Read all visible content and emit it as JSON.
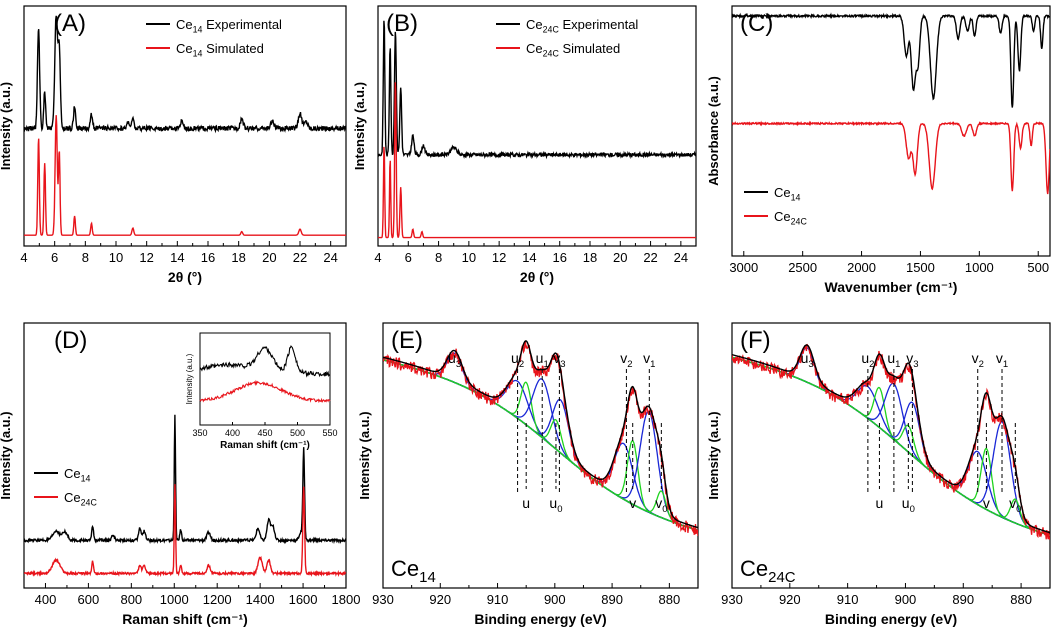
{
  "colors": {
    "black": "#000000",
    "red": "#e8141b",
    "green": "#1fd31f",
    "blue": "#1a27d6",
    "gray": "#8c8c8c",
    "darkred": "#8b1a1a"
  },
  "chart_data": [
    {
      "id": "A",
      "panel_label": "(A)",
      "type": "line",
      "title": "",
      "xlabel": "2θ (°)",
      "ylabel": "Intensity (a.u.)",
      "xlim": [
        4,
        25
      ],
      "ylim": [
        0,
        10
      ],
      "xticks": [
        4,
        6,
        8,
        10,
        12,
        14,
        16,
        18,
        20,
        22,
        24
      ],
      "legend": {
        "position": "top-right",
        "entries": [
          {
            "prefix": "Ce",
            "sub": "14",
            "suffix": " Experimental",
            "color": "#000000"
          },
          {
            "prefix": "Ce",
            "sub": "14",
            "suffix": " Simulated",
            "color": "#e8141b"
          }
        ]
      },
      "series": [
        {
          "name": "Ce14 Experimental",
          "color": "#000000",
          "baseline": 4.9,
          "noise": 0.1,
          "peaks": [
            [
              4.95,
              4.2,
              0.07
            ],
            [
              5.35,
              1.5,
              0.06
            ],
            [
              6.1,
              4.7,
              0.09
            ],
            [
              6.3,
              3.2,
              0.07
            ],
            [
              7.3,
              0.9,
              0.07
            ],
            [
              8.4,
              0.6,
              0.07
            ],
            [
              10.8,
              0.3,
              0.08
            ],
            [
              11.1,
              0.4,
              0.07
            ],
            [
              14.3,
              0.3,
              0.1
            ],
            [
              18.2,
              0.4,
              0.1
            ],
            [
              20.2,
              0.3,
              0.1
            ],
            [
              22.0,
              0.6,
              0.12
            ],
            [
              22.4,
              0.3,
              0.1
            ]
          ]
        },
        {
          "name": "Ce14 Simulated",
          "color": "#e8141b",
          "baseline": 0.45,
          "noise": 0.0,
          "peaks": [
            [
              4.95,
              4.1,
              0.05
            ],
            [
              5.35,
              3.0,
              0.05
            ],
            [
              6.1,
              5.0,
              0.07
            ],
            [
              6.3,
              3.5,
              0.05
            ],
            [
              7.3,
              0.8,
              0.05
            ],
            [
              8.4,
              0.5,
              0.05
            ],
            [
              11.1,
              0.3,
              0.06
            ],
            [
              18.2,
              0.15,
              0.06
            ],
            [
              22.0,
              0.25,
              0.08
            ]
          ]
        }
      ]
    },
    {
      "id": "B",
      "panel_label": "(B)",
      "type": "line",
      "title": "",
      "xlabel": "2θ (°)",
      "ylabel": "Intensity (a.u.)",
      "xlim": [
        4,
        25
      ],
      "ylim": [
        0,
        10
      ],
      "xticks": [
        4,
        6,
        8,
        10,
        12,
        14,
        16,
        18,
        20,
        22,
        24
      ],
      "legend": {
        "position": "top-right",
        "entries": [
          {
            "prefix": "Ce",
            "sub": "24C",
            "suffix": " Experimental",
            "color": "#000000"
          },
          {
            "prefix": "Ce",
            "sub": "24C",
            "suffix": " Simulated",
            "color": "#e8141b"
          }
        ]
      },
      "series": [
        {
          "name": "Ce24C Experimental",
          "color": "#000000",
          "baseline": 3.8,
          "noise": 0.08,
          "peaks": [
            [
              4.4,
              5.7,
              0.05
            ],
            [
              4.8,
              4.6,
              0.05
            ],
            [
              5.15,
              5.2,
              0.06
            ],
            [
              5.5,
              2.8,
              0.06
            ],
            [
              6.3,
              0.8,
              0.08
            ],
            [
              7.0,
              0.4,
              0.1
            ],
            [
              9.0,
              0.3,
              0.2
            ]
          ]
        },
        {
          "name": "Ce24C Simulated",
          "color": "#e8141b",
          "baseline": 0.35,
          "noise": 0.0,
          "peaks": [
            [
              4.4,
              3.9,
              0.04
            ],
            [
              4.8,
              3.3,
              0.04
            ],
            [
              5.15,
              6.6,
              0.05
            ],
            [
              5.5,
              2.1,
              0.05
            ],
            [
              6.3,
              0.35,
              0.05
            ],
            [
              6.9,
              0.25,
              0.05
            ]
          ]
        }
      ]
    },
    {
      "id": "C",
      "panel_label": "(C)",
      "type": "line",
      "title": "",
      "xlabel": "Wavenumber (cm⁻¹)",
      "ylabel": "Absorbance (a.u.)",
      "xlim": [
        3100,
        400
      ],
      "ylim": [
        0,
        10
      ],
      "xticks": [
        3000,
        2500,
        2000,
        1500,
        1000,
        500
      ],
      "legend": {
        "position": "bottom-left",
        "entries": [
          {
            "prefix": "Ce",
            "sub": "14",
            "suffix": "",
            "color": "#000000"
          },
          {
            "prefix": "Ce",
            "sub": "24C",
            "suffix": "",
            "color": "#e8141b"
          }
        ]
      },
      "series": [
        {
          "name": "Ce14",
          "color": "#000000",
          "baseline": 9.6,
          "noise": 0.04,
          "peaks": [
            [
              1620,
              -1.6,
              18
            ],
            [
              1560,
              -2.9,
              18
            ],
            [
              1520,
              -1.8,
              15
            ],
            [
              1390,
              -3.3,
              25
            ],
            [
              1180,
              -0.9,
              15
            ],
            [
              1100,
              -0.6,
              15
            ],
            [
              1040,
              -0.8,
              12
            ],
            [
              820,
              -0.7,
              12
            ],
            [
              720,
              -3.7,
              12
            ],
            [
              660,
              -2.2,
              12
            ],
            [
              540,
              -0.6,
              10
            ],
            [
              470,
              -1.3,
              10
            ]
          ]
        },
        {
          "name": "Ce24C",
          "color": "#e8141b",
          "baseline": 5.3,
          "noise": 0.03,
          "peaks": [
            [
              1600,
              -1.4,
              20
            ],
            [
              1545,
              -2.0,
              18
            ],
            [
              1400,
              -2.6,
              25
            ],
            [
              1130,
              -0.5,
              20
            ],
            [
              1040,
              -0.5,
              15
            ],
            [
              720,
              -2.7,
              12
            ],
            [
              650,
              -1.0,
              12
            ],
            [
              560,
              -0.9,
              10
            ],
            [
              420,
              -2.8,
              14
            ]
          ]
        }
      ]
    },
    {
      "id": "D",
      "panel_label": "(D)",
      "type": "line",
      "title": "",
      "xlabel": "Raman shift (cm⁻¹)",
      "ylabel": "Intensity (a.u.)",
      "xlim": [
        300,
        1800
      ],
      "ylim": [
        0,
        10
      ],
      "xticks": [
        400,
        600,
        800,
        1000,
        1200,
        1400,
        1600,
        1800
      ],
      "legend": {
        "position": "middle-left",
        "entries": [
          {
            "prefix": "Ce",
            "sub": "14",
            "suffix": "",
            "color": "#000000"
          },
          {
            "prefix": "Ce",
            "sub": "24C",
            "suffix": "",
            "color": "#e8141b"
          }
        ]
      },
      "series": [
        {
          "name": "Ce14",
          "color": "#000000",
          "baseline": 1.8,
          "noise": 0.05,
          "peaks": [
            [
              450,
              0.35,
              15
            ],
            [
              490,
              0.3,
              12
            ],
            [
              620,
              0.55,
              4
            ],
            [
              715,
              0.2,
              6
            ],
            [
              840,
              0.45,
              6
            ],
            [
              860,
              0.35,
              6
            ],
            [
              1003,
              4.7,
              3
            ],
            [
              1030,
              0.4,
              4
            ],
            [
              1160,
              0.3,
              8
            ],
            [
              1390,
              0.45,
              8
            ],
            [
              1440,
              0.75,
              8
            ],
            [
              1460,
              0.5,
              8
            ],
            [
              1590,
              0.3,
              8
            ],
            [
              1603,
              3.4,
              4
            ]
          ]
        },
        {
          "name": "Ce24C",
          "color": "#e8141b",
          "baseline": 0.55,
          "noise": 0.04,
          "peaks": [
            [
              450,
              0.5,
              18
            ],
            [
              620,
              0.45,
              4
            ],
            [
              840,
              0.3,
              6
            ],
            [
              860,
              0.3,
              6
            ],
            [
              1003,
              3.4,
              3
            ],
            [
              1030,
              0.3,
              4
            ],
            [
              1160,
              0.3,
              8
            ],
            [
              1400,
              0.6,
              10
            ],
            [
              1440,
              0.5,
              8
            ],
            [
              1603,
              3.3,
              4
            ]
          ]
        }
      ],
      "inset": {
        "xlabel": "Raman shift (cm⁻¹)",
        "ylabel": "Intensity (a.u.)",
        "xlim": [
          350,
          550
        ],
        "xticks": [
          350,
          400,
          450,
          500,
          550
        ],
        "series": [
          {
            "color": "#000000",
            "baseline": 5.5,
            "noise": 0.25,
            "slope": 0.6,
            "peaks": [
              [
                450,
                2.5,
                12
              ],
              [
                491,
                2.8,
                6
              ],
              [
                400,
                0.6,
                25
              ]
            ]
          },
          {
            "color": "#e8141b",
            "baseline": 2.6,
            "noise": 0.15,
            "slope": 0.0,
            "peaks": [
              [
                440,
                2.0,
                35
              ]
            ]
          }
        ]
      }
    },
    {
      "id": "E",
      "panel_label": "(E)",
      "type": "line",
      "title": "",
      "xlabel": "Binding energy (eV)",
      "ylabel": "Intensity (a.u.)",
      "xlim": [
        930,
        875
      ],
      "ylim": [
        0,
        10
      ],
      "xticks": [
        930,
        920,
        910,
        900,
        890,
        880
      ],
      "sample_label": {
        "prefix": "Ce",
        "sub": "14"
      },
      "top_markers": [
        {
          "base": "u",
          "sub": "3",
          "x": 917.5,
          "dashed": false
        },
        {
          "base": "u",
          "sub": "2",
          "x": 906.5,
          "dashed": true
        },
        {
          "base": "u",
          "sub": "1",
          "x": 902.2,
          "dashed": true
        },
        {
          "base": "v",
          "sub": "3",
          "x": 899.2,
          "dashed": true
        },
        {
          "base": "v",
          "sub": "2",
          "x": 887.5,
          "dashed": true
        },
        {
          "base": "v",
          "sub": "1",
          "x": 883.5,
          "dashed": true
        }
      ],
      "bottom_markers": [
        {
          "base": "u",
          "sub": "",
          "x": 905.0
        },
        {
          "base": "u",
          "sub": "0",
          "x": 899.8
        },
        {
          "base": "v",
          "sub": "",
          "x": 886.4
        },
        {
          "base": "v",
          "sub": "0",
          "x": 881.4
        }
      ],
      "background": {
        "start": 8.7,
        "end": 2.0
      },
      "components": [
        {
          "color": "#1a27d6",
          "x": 917.5,
          "h": 1.1,
          "w": 1.3
        },
        {
          "color": "#1a27d6",
          "x": 906.5,
          "h": 1.4,
          "w": 1.8
        },
        {
          "color": "#1fd31f",
          "x": 905.0,
          "h": 1.6,
          "w": 0.9
        },
        {
          "color": "#1a27d6",
          "x": 902.2,
          "h": 2.2,
          "w": 1.6
        },
        {
          "color": "#1fd31f",
          "x": 899.8,
          "h": 1.1,
          "w": 0.9
        },
        {
          "color": "#1a27d6",
          "x": 899.0,
          "h": 2.0,
          "w": 1.4
        },
        {
          "color": "#1a27d6",
          "x": 888.0,
          "h": 2.1,
          "w": 1.6
        },
        {
          "color": "#1fd31f",
          "x": 886.4,
          "h": 2.4,
          "w": 0.9
        },
        {
          "color": "#1a27d6",
          "x": 883.6,
          "h": 3.8,
          "w": 1.5
        },
        {
          "color": "#1fd31f",
          "x": 881.4,
          "h": 1.0,
          "w": 0.8
        }
      ]
    },
    {
      "id": "F",
      "panel_label": "(F)",
      "type": "line",
      "title": "",
      "xlabel": "Binding energy (eV)",
      "ylabel": "Intensity (a.u.)",
      "xlim": [
        930,
        875
      ],
      "ylim": [
        0,
        10
      ],
      "xticks": [
        930,
        920,
        910,
        900,
        890,
        880
      ],
      "sample_label": {
        "prefix": "Ce",
        "sub": "24C"
      },
      "top_markers": [
        {
          "base": "u",
          "sub": "3",
          "x": 917.0,
          "dashed": false
        },
        {
          "base": "u",
          "sub": "2",
          "x": 906.5,
          "dashed": true
        },
        {
          "base": "u",
          "sub": "1",
          "x": 902.0,
          "dashed": true
        },
        {
          "base": "v",
          "sub": "3",
          "x": 898.8,
          "dashed": true
        },
        {
          "base": "v",
          "sub": "2",
          "x": 887.5,
          "dashed": true
        },
        {
          "base": "v",
          "sub": "1",
          "x": 883.3,
          "dashed": true
        }
      ],
      "bottom_markers": [
        {
          "base": "u",
          "sub": "",
          "x": 904.5
        },
        {
          "base": "u",
          "sub": "0",
          "x": 899.5
        },
        {
          "base": "v",
          "sub": "",
          "x": 886.0
        },
        {
          "base": "v",
          "sub": "0",
          "x": 881.0
        }
      ],
      "background": {
        "start": 8.8,
        "end": 1.8
      },
      "components": [
        {
          "color": "#1a27d6",
          "x": 917.0,
          "h": 1.3,
          "w": 1.2
        },
        {
          "color": "#1a27d6",
          "x": 906.5,
          "h": 1.2,
          "w": 1.8
        },
        {
          "color": "#1fd31f",
          "x": 904.5,
          "h": 1.5,
          "w": 0.9
        },
        {
          "color": "#1a27d6",
          "x": 902.0,
          "h": 2.1,
          "w": 1.5
        },
        {
          "color": "#1fd31f",
          "x": 899.5,
          "h": 1.0,
          "w": 0.9
        },
        {
          "color": "#1a27d6",
          "x": 898.8,
          "h": 2.0,
          "w": 1.3
        },
        {
          "color": "#1a27d6",
          "x": 887.5,
          "h": 2.0,
          "w": 1.6
        },
        {
          "color": "#1fd31f",
          "x": 886.0,
          "h": 2.3,
          "w": 0.9
        },
        {
          "color": "#1a27d6",
          "x": 883.3,
          "h": 3.6,
          "w": 1.5
        },
        {
          "color": "#1fd31f",
          "x": 881.0,
          "h": 0.9,
          "w": 0.8
        }
      ]
    }
  ]
}
